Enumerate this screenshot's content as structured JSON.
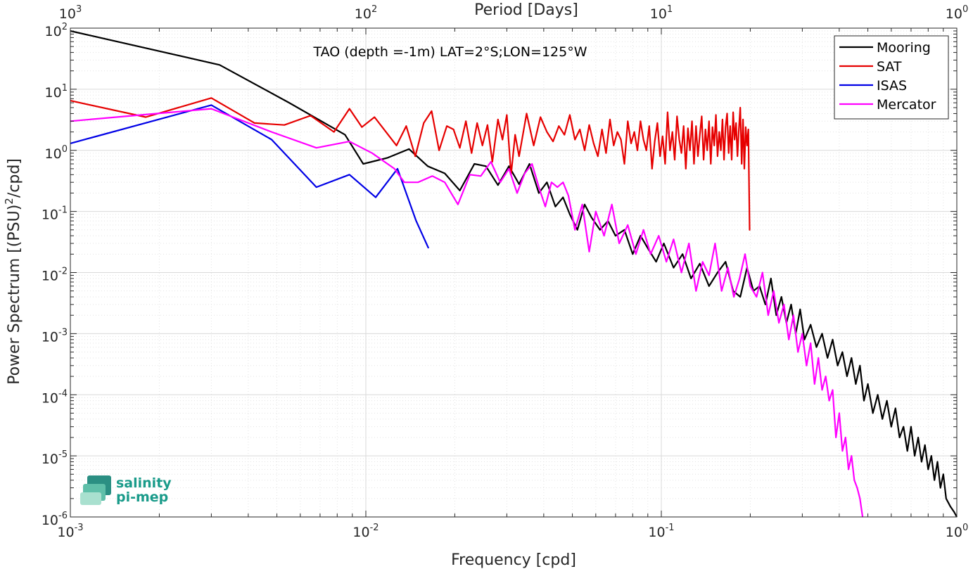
{
  "chart_data": {
    "type": "line",
    "title": "TAO (depth =-1m) LAT=2°S;LON=125°W",
    "xlabel": "Frequency [cpd]",
    "ylabel": "Power Spectrum [(PSU)",
    "ylabel_sup": "2",
    "ylabel_tail": "/cpd]",
    "top_xlabel": "Period [Days]",
    "x_scale": "log",
    "y_scale": "log",
    "xlim": [
      0.001,
      1
    ],
    "ylim": [
      1e-06,
      100
    ],
    "grid": true,
    "minor_grid": true,
    "legend_position": "top-right",
    "x_ticks": [
      {
        "value": 0.001,
        "base": "10",
        "exp": "-3"
      },
      {
        "value": 0.01,
        "base": "10",
        "exp": "-2"
      },
      {
        "value": 0.1,
        "base": "10",
        "exp": "-1"
      },
      {
        "value": 1,
        "base": "10",
        "exp": "0"
      }
    ],
    "top_ticks": [
      {
        "value": 0.001,
        "base": "10",
        "exp": "3"
      },
      {
        "value": 0.01,
        "base": "10",
        "exp": "2"
      },
      {
        "value": 0.1,
        "base": "10",
        "exp": "1"
      },
      {
        "value": 1,
        "base": "10",
        "exp": "0"
      }
    ],
    "y_ticks": [
      {
        "value": 100,
        "base": "10",
        "exp": "2"
      },
      {
        "value": 10,
        "base": "10",
        "exp": "1"
      },
      {
        "value": 1,
        "base": "10",
        "exp": "0"
      },
      {
        "value": 0.1,
        "base": "10",
        "exp": "-1"
      },
      {
        "value": 0.01,
        "base": "10",
        "exp": "-2"
      },
      {
        "value": 0.001,
        "base": "10",
        "exp": "-3"
      },
      {
        "value": 0.0001,
        "base": "10",
        "exp": "-4"
      },
      {
        "value": 1e-05,
        "base": "10",
        "exp": "-5"
      },
      {
        "value": 1e-06,
        "base": "10",
        "exp": "-6"
      }
    ],
    "series": [
      {
        "name": "Mooring",
        "color": "#000000",
        "x": [
          0.001,
          0.0032,
          0.0055,
          0.0085,
          0.0098,
          0.0118,
          0.014,
          0.0162,
          0.0185,
          0.0208,
          0.0233,
          0.0255,
          0.028,
          0.0305,
          0.033,
          0.0358,
          0.0385,
          0.041,
          0.0438,
          0.0465,
          0.049,
          0.052,
          0.055,
          0.058,
          0.062,
          0.066,
          0.07,
          0.075,
          0.08,
          0.085,
          0.09,
          0.096,
          0.102,
          0.11,
          0.118,
          0.126,
          0.135,
          0.145,
          0.155,
          0.165,
          0.175,
          0.185,
          0.195,
          0.205,
          0.215,
          0.225,
          0.235,
          0.245,
          0.255,
          0.265,
          0.275,
          0.285,
          0.295,
          0.305,
          0.32,
          0.335,
          0.35,
          0.365,
          0.38,
          0.395,
          0.41,
          0.425,
          0.44,
          0.455,
          0.47,
          0.485,
          0.5,
          0.52,
          0.54,
          0.56,
          0.58,
          0.6,
          0.62,
          0.64,
          0.66,
          0.68,
          0.7,
          0.72,
          0.74,
          0.76,
          0.78,
          0.8,
          0.82,
          0.84,
          0.86,
          0.88,
          0.9,
          0.92,
          0.95,
          0.98,
          1.0
        ],
        "y": [
          90,
          25,
          6,
          1.8,
          0.6,
          0.75,
          1.05,
          0.55,
          0.42,
          0.22,
          0.6,
          0.55,
          0.27,
          0.55,
          0.28,
          0.6,
          0.2,
          0.3,
          0.12,
          0.17,
          0.09,
          0.05,
          0.13,
          0.08,
          0.05,
          0.07,
          0.04,
          0.05,
          0.02,
          0.04,
          0.025,
          0.015,
          0.03,
          0.012,
          0.02,
          0.008,
          0.014,
          0.006,
          0.01,
          0.015,
          0.005,
          0.004,
          0.012,
          0.005,
          0.006,
          0.003,
          0.008,
          0.002,
          0.004,
          0.0015,
          0.003,
          0.001,
          0.0025,
          0.0008,
          0.0014,
          0.0006,
          0.001,
          0.0004,
          0.0008,
          0.0003,
          0.0005,
          0.0002,
          0.0004,
          0.00015,
          0.0003,
          8e-05,
          0.00015,
          5e-05,
          0.0001,
          4e-05,
          8e-05,
          3e-05,
          6e-05,
          2e-05,
          3e-05,
          1.2e-05,
          3e-05,
          1e-05,
          2e-05,
          8e-06,
          1.5e-05,
          6e-06,
          1e-05,
          4e-06,
          8e-06,
          3e-06,
          5e-06,
          2e-06,
          1.5e-06,
          1.2e-06,
          1e-06
        ]
      },
      {
        "name": "SAT",
        "color": "#e60000",
        "x": [
          0.001,
          0.0018,
          0.003,
          0.0042,
          0.0053,
          0.0065,
          0.0078,
          0.0088,
          0.0097,
          0.0107,
          0.0117,
          0.0127,
          0.0137,
          0.0147,
          0.0157,
          0.0167,
          0.0177,
          0.0188,
          0.0198,
          0.0208,
          0.0218,
          0.0228,
          0.0238,
          0.0248,
          0.0258,
          0.0268,
          0.028,
          0.029,
          0.03,
          0.031,
          0.032,
          0.033,
          0.035,
          0.037,
          0.039,
          0.041,
          0.043,
          0.045,
          0.047,
          0.049,
          0.051,
          0.053,
          0.055,
          0.057,
          0.059,
          0.061,
          0.063,
          0.065,
          0.067,
          0.069,
          0.071,
          0.073,
          0.075,
          0.077,
          0.079,
          0.081,
          0.083,
          0.085,
          0.087,
          0.089,
          0.091,
          0.093,
          0.095,
          0.097,
          0.099,
          0.101,
          0.103,
          0.105,
          0.107,
          0.109,
          0.111,
          0.113,
          0.115,
          0.117,
          0.119,
          0.121,
          0.123,
          0.125,
          0.127,
          0.129,
          0.131,
          0.133,
          0.135,
          0.137,
          0.139,
          0.141,
          0.143,
          0.145,
          0.147,
          0.149,
          0.151,
          0.153,
          0.155,
          0.157,
          0.159,
          0.161,
          0.163,
          0.165,
          0.167,
          0.169,
          0.171,
          0.173,
          0.175,
          0.177,
          0.179,
          0.181,
          0.183,
          0.185,
          0.187,
          0.189,
          0.191,
          0.193,
          0.195,
          0.197,
          0.199,
          0.2
        ],
        "y": [
          6.5,
          3.5,
          7.2,
          2.8,
          2.6,
          3.7,
          2.0,
          4.8,
          2.4,
          3.5,
          2.0,
          1.2,
          2.5,
          0.8,
          2.8,
          4.4,
          1.0,
          2.5,
          2.2,
          1.1,
          3.0,
          0.9,
          2.8,
          1.2,
          2.6,
          0.65,
          3.2,
          1.5,
          3.8,
          0.4,
          1.8,
          0.8,
          4.0,
          1.2,
          3.5,
          2.0,
          1.4,
          2.5,
          1.8,
          3.8,
          1.5,
          2.2,
          1.0,
          2.6,
          1.3,
          0.8,
          2.2,
          0.9,
          3.2,
          1.2,
          2.0,
          1.5,
          0.6,
          3.0,
          1.3,
          2.0,
          1.0,
          3.0,
          1.5,
          1.0,
          2.5,
          0.5,
          1.4,
          2.8,
          0.8,
          1.7,
          0.6,
          4.2,
          1.0,
          2.0,
          0.7,
          3.6,
          1.5,
          0.9,
          2.5,
          0.5,
          2.3,
          1.0,
          3.0,
          0.6,
          2.5,
          0.8,
          1.8,
          3.6,
          0.7,
          2.2,
          1.0,
          3.0,
          0.6,
          2.4,
          1.2,
          3.8,
          0.8,
          2.0,
          1.0,
          3.2,
          0.7,
          2.4,
          4.0,
          0.9,
          2.5,
          0.7,
          4.2,
          1.5,
          2.8,
          0.8,
          2.2,
          5.0,
          0.6,
          3.2,
          0.5,
          2.4,
          1.2,
          2.2,
          0.05,
          0.05
        ]
      },
      {
        "name": "ISAS",
        "color": "#0000e6",
        "x": [
          0.001,
          0.003,
          0.0048,
          0.0068,
          0.0088,
          0.0108,
          0.0128,
          0.0148,
          0.0163
        ],
        "y": [
          1.3,
          5.5,
          1.5,
          0.25,
          0.4,
          0.17,
          0.5,
          0.07,
          0.025
        ]
      },
      {
        "name": "Mercator",
        "color": "#ff00ff",
        "x": [
          0.001,
          0.003,
          0.0048,
          0.0068,
          0.0088,
          0.0105,
          0.0125,
          0.0135,
          0.015,
          0.0168,
          0.0185,
          0.0205,
          0.0225,
          0.0245,
          0.0265,
          0.0285,
          0.0305,
          0.0325,
          0.0345,
          0.0365,
          0.0385,
          0.0405,
          0.0425,
          0.0445,
          0.0465,
          0.0485,
          0.051,
          0.054,
          0.057,
          0.06,
          0.064,
          0.068,
          0.072,
          0.077,
          0.082,
          0.087,
          0.092,
          0.098,
          0.104,
          0.11,
          0.117,
          0.124,
          0.131,
          0.138,
          0.145,
          0.152,
          0.16,
          0.168,
          0.176,
          0.184,
          0.192,
          0.2,
          0.21,
          0.22,
          0.23,
          0.24,
          0.25,
          0.26,
          0.27,
          0.28,
          0.29,
          0.3,
          0.31,
          0.32,
          0.33,
          0.34,
          0.35,
          0.36,
          0.37,
          0.38,
          0.39,
          0.4,
          0.41,
          0.42,
          0.43,
          0.44,
          0.45,
          0.46,
          0.47,
          0.48
        ],
        "y": [
          3.0,
          4.8,
          2.0,
          1.1,
          1.4,
          0.9,
          0.5,
          0.3,
          0.3,
          0.38,
          0.3,
          0.13,
          0.4,
          0.38,
          0.65,
          0.3,
          0.5,
          0.2,
          0.42,
          0.6,
          0.25,
          0.12,
          0.3,
          0.25,
          0.3,
          0.18,
          0.05,
          0.13,
          0.022,
          0.1,
          0.04,
          0.13,
          0.03,
          0.06,
          0.02,
          0.05,
          0.02,
          0.04,
          0.015,
          0.035,
          0.01,
          0.03,
          0.005,
          0.015,
          0.009,
          0.03,
          0.005,
          0.012,
          0.004,
          0.008,
          0.02,
          0.006,
          0.004,
          0.01,
          0.002,
          0.005,
          0.0015,
          0.003,
          0.0008,
          0.002,
          0.0005,
          0.001,
          0.0003,
          0.0007,
          0.00015,
          0.0004,
          0.00012,
          0.0002,
          8e-05,
          0.00012,
          2e-05,
          5e-05,
          1.2e-05,
          2e-05,
          6e-06,
          1e-05,
          4e-06,
          3e-06,
          2e-06,
          5e-07
        ]
      }
    ]
  },
  "logo": {
    "line1": "salinity",
    "line2": "pi-mep"
  }
}
